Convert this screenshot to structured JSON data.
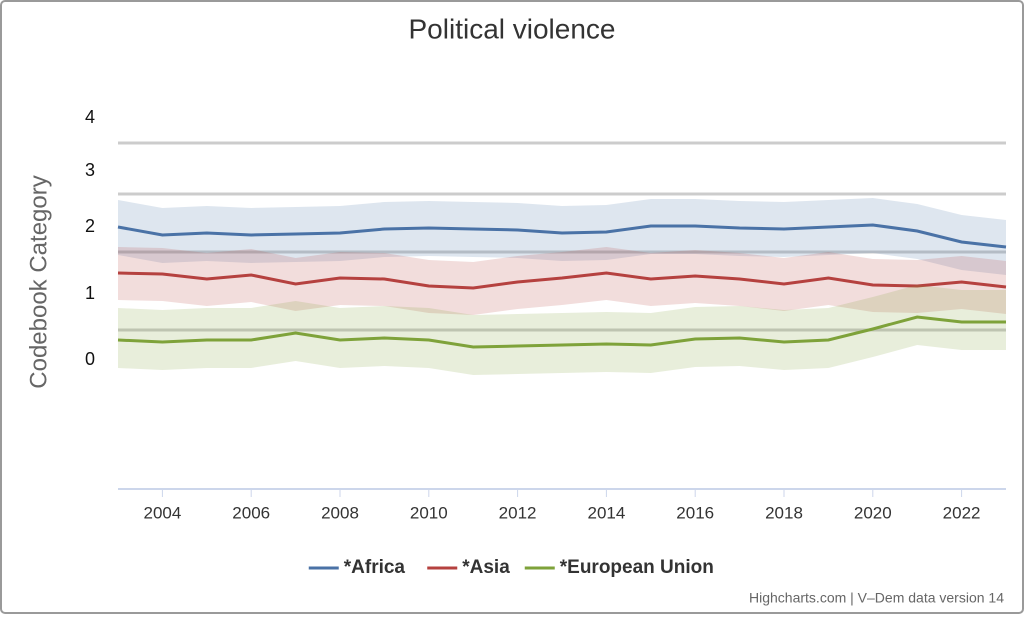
{
  "chart_data": {
    "type": "line",
    "title": "Political violence",
    "y_axis_label": "Codebook Category",
    "credits": "Highcharts.com | V–Dem data version 14",
    "x": [
      2003,
      2004,
      2005,
      2006,
      2007,
      2008,
      2009,
      2010,
      2011,
      2012,
      2013,
      2014,
      2015,
      2016,
      2017,
      2018,
      2019,
      2020,
      2021,
      2022,
      2023
    ],
    "xlim": [
      2003,
      2023
    ],
    "xticks": [
      2004,
      2006,
      2008,
      2010,
      2012,
      2014,
      2016,
      2018,
      2020,
      2022
    ],
    "ylim": [
      -3,
      5
    ],
    "yticks": [
      {
        "value": 4.42,
        "label": "4"
      },
      {
        "value": 3.36,
        "label": "3"
      },
      {
        "value": 2.24,
        "label": "2"
      },
      {
        "value": 0.9,
        "label": "1"
      },
      {
        "value": -0.42,
        "label": "0"
      }
    ],
    "thresholds": [
      3.92,
      2.9,
      1.74,
      0.18
    ],
    "legend": "bottom",
    "series": [
      {
        "name": "*Africa",
        "color": "#4a72a6",
        "values": [
          2.24,
          2.08,
          2.12,
          2.08,
          2.1,
          2.12,
          2.2,
          2.22,
          2.2,
          2.18,
          2.12,
          2.14,
          2.26,
          2.26,
          2.22,
          2.2,
          2.24,
          2.28,
          2.16,
          1.94,
          1.84
        ],
        "upper": [
          2.78,
          2.62,
          2.66,
          2.62,
          2.64,
          2.66,
          2.74,
          2.76,
          2.74,
          2.72,
          2.66,
          2.68,
          2.8,
          2.8,
          2.76,
          2.74,
          2.78,
          2.82,
          2.7,
          2.48,
          2.38
        ],
        "lower": [
          1.68,
          1.52,
          1.56,
          1.52,
          1.54,
          1.56,
          1.64,
          1.66,
          1.64,
          1.62,
          1.56,
          1.58,
          1.7,
          1.7,
          1.66,
          1.64,
          1.68,
          1.72,
          1.6,
          1.38,
          1.28
        ]
      },
      {
        "name": "*Asia",
        "color": "#b5413f",
        "values": [
          1.32,
          1.3,
          1.2,
          1.28,
          1.1,
          1.22,
          1.2,
          1.06,
          1.02,
          1.14,
          1.22,
          1.32,
          1.2,
          1.26,
          1.2,
          1.1,
          1.22,
          1.08,
          1.06,
          1.14,
          1.04
        ],
        "upper": [
          1.84,
          1.82,
          1.72,
          1.8,
          1.62,
          1.74,
          1.72,
          1.58,
          1.54,
          1.66,
          1.74,
          1.84,
          1.72,
          1.78,
          1.72,
          1.62,
          1.74,
          1.6,
          1.58,
          1.66,
          1.56
        ],
        "lower": [
          0.78,
          0.76,
          0.66,
          0.74,
          0.56,
          0.68,
          0.66,
          0.52,
          0.48,
          0.6,
          0.68,
          0.78,
          0.66,
          0.72,
          0.66,
          0.56,
          0.68,
          0.54,
          0.52,
          0.6,
          0.5
        ]
      },
      {
        "name": "*European Union",
        "color": "#7ea23a",
        "values": [
          -0.02,
          -0.06,
          -0.02,
          -0.02,
          0.12,
          -0.02,
          0.02,
          -0.02,
          -0.16,
          -0.14,
          -0.12,
          -0.1,
          -0.12,
          0,
          0.02,
          -0.06,
          -0.02,
          0.2,
          0.44,
          0.34,
          0.34
        ],
        "upper": [
          0.62,
          0.58,
          0.62,
          0.62,
          0.76,
          0.62,
          0.66,
          0.62,
          0.48,
          0.5,
          0.52,
          0.54,
          0.52,
          0.64,
          0.66,
          0.58,
          0.62,
          0.84,
          1.08,
          0.98,
          0.98
        ],
        "lower": [
          -0.58,
          -0.62,
          -0.58,
          -0.58,
          -0.44,
          -0.58,
          -0.54,
          -0.58,
          -0.72,
          -0.7,
          -0.68,
          -0.66,
          -0.68,
          -0.56,
          -0.54,
          -0.62,
          -0.58,
          -0.36,
          -0.12,
          -0.22,
          -0.22
        ]
      }
    ]
  }
}
